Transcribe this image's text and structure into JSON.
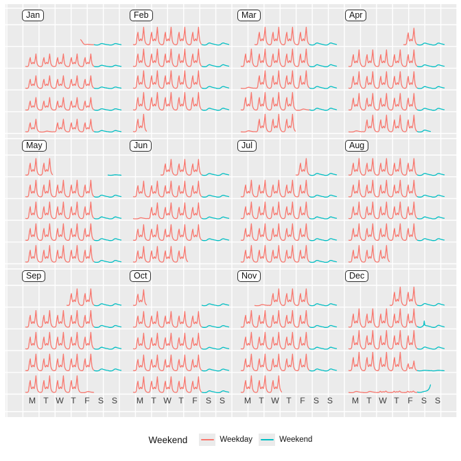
{
  "legend": {
    "title": "Weekend",
    "items": [
      {
        "label": "Weekday",
        "color": "#F8766D"
      },
      {
        "label": "Weekend",
        "color": "#00BFC4"
      }
    ]
  },
  "panel": {
    "background": "#EBEBEB",
    "gridline_color": "#FFFFFF"
  },
  "chart_data": {
    "type": "line",
    "layout": "calendar facet: 12 month panels (4 cols x 3 rows), each month = 5 week rows x 7 day columns, one 24-hour line per day",
    "x_unit": "hour of day (0-23)",
    "day_labels": [
      "M",
      "T",
      "W",
      "T",
      "F",
      "S",
      "S"
    ],
    "series_colors": {
      "weekday": "#F8766D",
      "weekend": "#00BFC4"
    },
    "profiles": {
      "wd": {
        "series": "weekday",
        "amp": 26,
        "values": [
          0.03,
          0.02,
          0.02,
          0.02,
          0.04,
          0.1,
          0.38,
          0.58,
          0.72,
          0.4,
          0.25,
          0.24,
          0.31,
          0.35,
          0.27,
          0.25,
          0.4,
          0.65,
          1.0,
          0.6,
          0.28,
          0.16,
          0.09,
          0.05
        ]
      },
      "wds": {
        "series": "weekday",
        "amp": 14,
        "values": [
          0.03,
          0.02,
          0.02,
          0.02,
          0.04,
          0.1,
          0.38,
          0.58,
          0.72,
          0.4,
          0.25,
          0.24,
          0.31,
          0.35,
          0.27,
          0.25,
          0.4,
          0.65,
          1.0,
          0.6,
          0.28,
          0.16,
          0.09,
          0.05
        ]
      },
      "we": {
        "series": "weekend",
        "amp": 5,
        "values": [
          0.16,
          0.09,
          0.05,
          0.03,
          0.02,
          0.02,
          0.04,
          0.07,
          0.13,
          0.24,
          0.38,
          0.5,
          0.58,
          0.62,
          0.6,
          0.55,
          0.49,
          0.43,
          0.38,
          0.34,
          0.3,
          0.26,
          0.22,
          0.18
        ]
      },
      "wef": {
        "series": "weekend",
        "amp": 2,
        "values": [
          0.3,
          0.2,
          0.15,
          0.1,
          0.1,
          0.1,
          0.12,
          0.15,
          0.2,
          0.28,
          0.35,
          0.42,
          0.46,
          0.48,
          0.46,
          0.43,
          0.4,
          0.37,
          0.34,
          0.3,
          0.27,
          0.24,
          0.21,
          0.18
        ]
      },
      "wsp": {
        "series": "weekend",
        "amp": 9,
        "values": [
          0.16,
          0.09,
          0.05,
          0.03,
          0.02,
          0.02,
          0.04,
          0.07,
          0.12,
          0.2,
          0.28,
          0.34,
          1.0,
          0.38,
          0.33,
          0.3,
          0.28,
          0.26,
          0.24,
          0.22,
          0.2,
          0.18,
          0.16,
          0.14
        ]
      },
      "nye": {
        "series": "weekend",
        "amp": 11,
        "values": [
          0.09,
          0.06,
          0.05,
          0.04,
          0.04,
          0.04,
          0.05,
          0.07,
          0.09,
          0.11,
          0.13,
          0.15,
          0.17,
          0.18,
          0.19,
          0.21,
          0.23,
          0.26,
          0.3,
          0.36,
          0.44,
          0.56,
          0.74,
          1.0
        ]
      },
      "hol": {
        "series": "weekday",
        "amp": 3,
        "values": [
          0.15,
          0.08,
          0.05,
          0.03,
          0.02,
          0.02,
          0.03,
          0.06,
          0.12,
          0.22,
          0.35,
          0.48,
          0.57,
          0.62,
          0.6,
          0.55,
          0.48,
          0.42,
          0.36,
          0.31,
          0.27,
          0.23,
          0.19,
          0.16
        ]
      },
      "nyd": {
        "series": "weekday",
        "amp": 11,
        "values": [
          1.0,
          0.9,
          0.75,
          0.58,
          0.42,
          0.28,
          0.18,
          0.12,
          0.1,
          0.1,
          0.12,
          0.14,
          0.15,
          0.14,
          0.13,
          0.12,
          0.11,
          0.1,
          0.09,
          0.09,
          0.08,
          0.08,
          0.07,
          0.07
        ]
      },
      "low": {
        "series": "weekday",
        "amp": 8,
        "values": [
          0.05,
          0.04,
          0.04,
          0.04,
          0.05,
          0.08,
          0.16,
          0.26,
          0.22,
          0.12,
          0.1,
          0.14,
          0.2,
          0.15,
          0.12,
          0.16,
          0.24,
          0.3,
          0.22,
          0.12,
          0.08,
          0.06,
          0.05,
          0.04
        ]
      }
    },
    "months": [
      {
        "name": "Jan",
        "scale": 0.72,
        "weeks": [
          [
            null,
            null,
            null,
            null,
            "nyd",
            "we",
            "we"
          ],
          [
            "wd",
            "wd",
            "wd",
            "wd",
            "wd",
            "we",
            "we"
          ],
          [
            "wd",
            "wd",
            "wd",
            "wd",
            "wd",
            "we",
            "we"
          ],
          [
            "wd",
            "wd",
            "wd",
            "wd",
            "wd",
            "we",
            "we"
          ],
          [
            "wd",
            "hol",
            "wd",
            "wd",
            "wd",
            "we",
            "we"
          ]
        ]
      },
      {
        "name": "Feb",
        "scale": 1.0,
        "weeks": [
          [
            "wd",
            "wd",
            "wd",
            "wd",
            "wd",
            "we",
            "we"
          ],
          [
            "wd",
            "wd",
            "wd",
            "wd",
            "wd",
            "we",
            "we"
          ],
          [
            "wd",
            "wd",
            "wd",
            "wd",
            "wd",
            "we",
            "we"
          ],
          [
            "wd",
            "wd",
            "wd",
            "wd",
            "wd",
            "we",
            "we"
          ],
          [
            "wd",
            null,
            null,
            null,
            null,
            null,
            null
          ]
        ]
      },
      {
        "name": "Mar",
        "scale": 1.0,
        "weeks": [
          [
            null,
            "wd",
            "wd",
            "wd",
            "wd",
            "we",
            "we"
          ],
          [
            "wd",
            "wd",
            "wd",
            "wd",
            "wd",
            "we",
            "we"
          ],
          [
            "hol",
            "wd",
            "wd",
            "wd",
            "wd",
            "we",
            "we"
          ],
          [
            "wd",
            "wd",
            "wd",
            "wd",
            "hol",
            "we",
            "we"
          ],
          [
            "hol",
            "wd",
            "wd",
            "wd",
            null,
            null,
            null
          ]
        ]
      },
      {
        "name": "Apr",
        "scale": 0.95,
        "weeks": [
          [
            null,
            null,
            null,
            null,
            "wd",
            "we",
            "we"
          ],
          [
            "wd",
            "wd",
            "wd",
            "wd",
            "wd",
            "we",
            "we"
          ],
          [
            "wd",
            "wd",
            "wd",
            "wd",
            "wd",
            "we",
            "we"
          ],
          [
            "wd",
            "wd",
            "wd",
            "wd",
            "wd",
            "we",
            "we"
          ],
          [
            "hol",
            "wd",
            "wd",
            "wd",
            "wd",
            "we",
            null
          ]
        ]
      },
      {
        "name": "May",
        "scale": 0.95,
        "weeks": [
          [
            "wd",
            "wd",
            null,
            null,
            null,
            null,
            "wef"
          ],
          [
            "wd",
            "wd",
            "wd",
            "wd",
            "wd",
            "we",
            "we"
          ],
          [
            "wd",
            "wd",
            "wd",
            "wd",
            "wd",
            "we",
            "we"
          ],
          [
            "wd",
            "wd",
            "wd",
            "wd",
            "wd",
            "we",
            "we"
          ],
          [
            "wd",
            "wd",
            "wd",
            "wd",
            "wd",
            "we",
            "we"
          ]
        ]
      },
      {
        "name": "Jun",
        "scale": 0.9,
        "weeks": [
          [
            null,
            null,
            "wd",
            "wd",
            "wd",
            "we",
            "we"
          ],
          [
            "wd",
            "wd",
            "wd",
            "wd",
            "wd",
            "we",
            "we"
          ],
          [
            "hol",
            "wd",
            "wd",
            "wd",
            "wd",
            "we",
            "we"
          ],
          [
            "wd",
            "wd",
            "wd",
            "wd",
            "wd",
            "we",
            "we"
          ],
          [
            "wd",
            "wd",
            "wd",
            "wd",
            null,
            null,
            null
          ]
        ]
      },
      {
        "name": "Jul",
        "scale": 0.95,
        "weeks": [
          [
            null,
            null,
            null,
            null,
            "wd",
            "we",
            "we"
          ],
          [
            "wd",
            "wd",
            "wd",
            "wd",
            "wd",
            "we",
            "we"
          ],
          [
            "wd",
            "wd",
            "wd",
            "wd",
            "wd",
            "we",
            "we"
          ],
          [
            "wd",
            "wd",
            "wd",
            "wd",
            "wd",
            "we",
            "we"
          ],
          [
            "wd",
            "wd",
            "wd",
            "wd",
            "wd",
            "we",
            "we"
          ]
        ]
      },
      {
        "name": "Aug",
        "scale": 0.95,
        "weeks": [
          [
            "wd",
            "wd",
            "wd",
            "wd",
            "wd",
            "we",
            "we"
          ],
          [
            "wd",
            "wd",
            "wd",
            "wd",
            "wd",
            "we",
            "we"
          ],
          [
            "wd",
            "wd",
            "wd",
            "wd",
            "wd",
            "we",
            "we"
          ],
          [
            "wd",
            "wd",
            "wd",
            "wd",
            "wd",
            "we",
            "we"
          ],
          [
            "wd",
            "wd",
            "wd",
            null,
            null,
            null,
            null
          ]
        ]
      },
      {
        "name": "Sep",
        "scale": 0.95,
        "weeks": [
          [
            null,
            null,
            null,
            "wd",
            "wd",
            "we",
            "we"
          ],
          [
            "wd",
            "wd",
            "wd",
            "wd",
            "wd",
            "we",
            "we"
          ],
          [
            "wd",
            "wd",
            "wd",
            "wd",
            "wd",
            "we",
            "we"
          ],
          [
            "wd",
            "wd",
            "wd",
            "wd",
            "wd",
            "we",
            "we"
          ],
          [
            "wd",
            "wd",
            "wd",
            "wd",
            "hol",
            null,
            null
          ]
        ]
      },
      {
        "name": "Oct",
        "scale": 0.9,
        "weeks": [
          [
            "wd",
            null,
            null,
            null,
            null,
            "we",
            "we"
          ],
          [
            "wd",
            "wd",
            "wd",
            "wd",
            "wd",
            "we",
            "we"
          ],
          [
            "wd",
            "wd",
            "wd",
            "wd",
            "wd",
            "we",
            "we"
          ],
          [
            "wd",
            "wd",
            "wd",
            "wd",
            "wd",
            "we",
            "we"
          ],
          [
            "wd",
            "wd",
            "wd",
            "wd",
            "wd",
            "we",
            "we"
          ]
        ]
      },
      {
        "name": "Nov",
        "scale": 0.95,
        "weeks": [
          [
            null,
            "hol",
            "wd",
            "wd",
            "wd",
            "we",
            "we"
          ],
          [
            "wd",
            "wd",
            "wd",
            "wd",
            "wd",
            "we",
            "we"
          ],
          [
            "wd",
            "wd",
            "wd",
            "wd",
            "wd",
            "we",
            "we"
          ],
          [
            "wd",
            "wd",
            "wd",
            "wd",
            "wd",
            "we",
            "we"
          ],
          [
            "wd",
            "wd",
            "wd",
            null,
            null,
            null,
            null
          ]
        ]
      },
      {
        "name": "Dec",
        "scale": 1.05,
        "weeks": [
          [
            null,
            null,
            null,
            "wd",
            "wd",
            "we",
            "we"
          ],
          [
            "wd",
            "wd",
            "wd",
            "wd",
            "wd",
            "wsp",
            "we"
          ],
          [
            "wd",
            "wd",
            "wd",
            "wd",
            "wd",
            "we",
            "we"
          ],
          [
            "wd",
            "wd",
            "wd",
            "wd",
            "wds",
            "wef",
            "wef"
          ],
          [
            "hol",
            "hol",
            "low",
            "low",
            "low",
            "nye",
            null
          ]
        ]
      }
    ]
  }
}
